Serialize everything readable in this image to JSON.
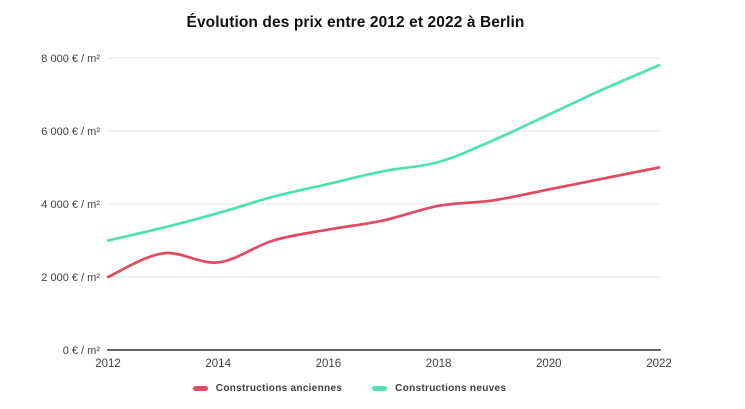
{
  "chart_data": {
    "type": "line",
    "title": "Évolution des prix entre 2012 et 2022 à Berlin",
    "x": [
      2012,
      2013,
      2014,
      2015,
      2016,
      2017,
      2018,
      2019,
      2020,
      2021,
      2022
    ],
    "series": [
      {
        "name": "Constructions anciennes",
        "color": "#e04a63",
        "values": [
          2000,
          2650,
          2400,
          3000,
          3300,
          3550,
          3950,
          4100,
          4400,
          4700,
          5000
        ]
      },
      {
        "name": "Constructions neuves",
        "color": "#4fe3ab",
        "values": [
          3000,
          3350,
          3750,
          4200,
          4550,
          4900,
          5150,
          5750,
          6450,
          7150,
          7800
        ]
      }
    ],
    "ylim": [
      0,
      8000
    ],
    "yticks": [
      0,
      2000,
      4000,
      6000,
      8000
    ],
    "ytick_labels": [
      "0 € / m²",
      "2 000 € / m²",
      "4 000 € / m²",
      "6 000 € / m²",
      "8 000 € / m²"
    ],
    "xticks": [
      2012,
      2014,
      2016,
      2018,
      2020,
      2022
    ],
    "grid": true,
    "legend_position": "bottom",
    "grid_color": "#e6e6e6",
    "axis_color": "#333333",
    "tick_label_color": "#424242",
    "title_color": "#111111"
  }
}
